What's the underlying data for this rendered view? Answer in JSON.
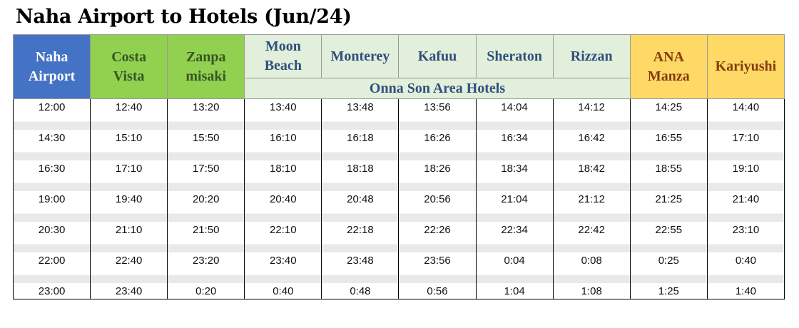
{
  "title": "Naha Airport to Hotels (Jun/24)",
  "header": {
    "columns": [
      {
        "lines": [
          "Naha",
          "Airport"
        ],
        "style": "blue"
      },
      {
        "lines": [
          "Costa",
          "Vista"
        ],
        "style": "green"
      },
      {
        "lines": [
          "Zanpa",
          "misaki"
        ],
        "style": "green"
      },
      {
        "lines": [
          "Moon",
          "Beach"
        ],
        "style": "light"
      },
      {
        "lines": [
          "Monterey"
        ],
        "style": "light"
      },
      {
        "lines": [
          "Kafuu"
        ],
        "style": "light"
      },
      {
        "lines": [
          "Sheraton"
        ],
        "style": "light"
      },
      {
        "lines": [
          "Rizzan"
        ],
        "style": "light"
      },
      {
        "lines": [
          "ANA",
          "Manza"
        ],
        "style": "yellow"
      },
      {
        "lines": [
          "Kariyushi"
        ],
        "style": "yellow"
      }
    ],
    "group": {
      "label": "Onna Son Area Hotels",
      "first": 3,
      "span": 5
    }
  },
  "table": {
    "rows": [
      [
        "12:00",
        "12:40",
        "13:20",
        "13:40",
        "13:48",
        "13:56",
        "14:04",
        "14:12",
        "14:25",
        "14:40"
      ],
      [
        "14:30",
        "15:10",
        "15:50",
        "16:10",
        "16:18",
        "16:26",
        "16:34",
        "16:42",
        "16:55",
        "17:10"
      ],
      [
        "16:30",
        "17:10",
        "17:50",
        "18:10",
        "18:18",
        "18:26",
        "18:34",
        "18:42",
        "18:55",
        "19:10"
      ],
      [
        "19:00",
        "19:40",
        "20:20",
        "20:40",
        "20:48",
        "20:56",
        "21:04",
        "21:12",
        "21:25",
        "21:40"
      ],
      [
        "20:30",
        "21:10",
        "21:50",
        "22:10",
        "22:18",
        "22:26",
        "22:34",
        "22:42",
        "22:55",
        "23:10"
      ],
      [
        "22:00",
        "22:40",
        "23:20",
        "23:40",
        "23:48",
        "23:56",
        "0:04",
        "0:08",
        "0:25",
        "0:40"
      ],
      [
        "23:00",
        "23:40",
        "0:20",
        "0:40",
        "0:48",
        "0:56",
        "1:04",
        "1:08",
        "1:25",
        "1:40"
      ]
    ]
  }
}
